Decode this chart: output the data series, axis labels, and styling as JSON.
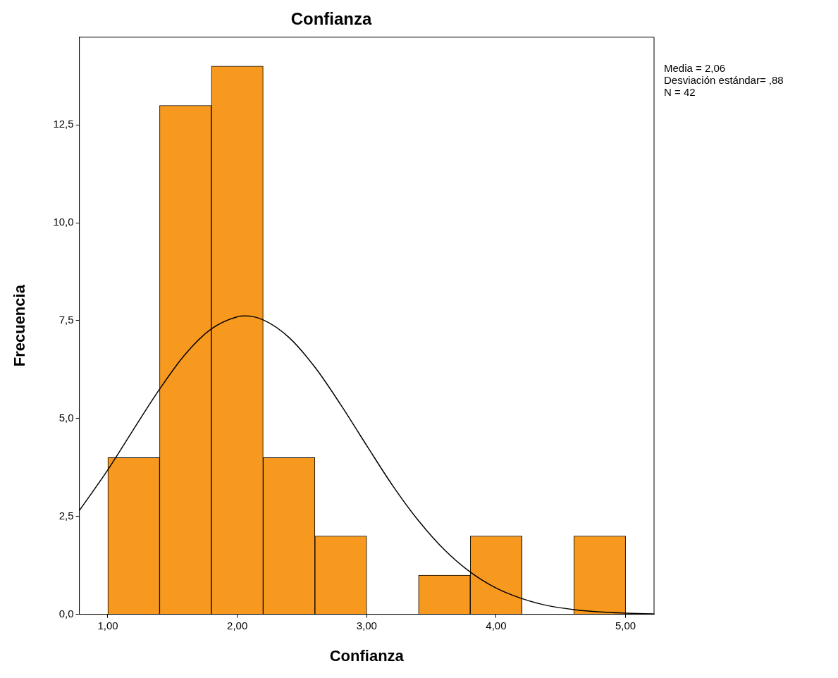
{
  "chart_data": {
    "type": "histogram",
    "title": "Confianza",
    "xlabel": "Confianza",
    "ylabel": "Frecuencia",
    "bins": [
      1.0,
      1.4,
      1.8,
      2.2,
      2.6,
      3.0,
      3.4,
      3.8,
      4.2,
      4.6,
      5.0
    ],
    "values": [
      4,
      13,
      14,
      4,
      2,
      0,
      1,
      2,
      0,
      2
    ],
    "color": "#f7991e",
    "series": [
      {
        "type": "line",
        "color": "#000000",
        "x": [
          0.78,
          1.0,
          1.2,
          1.4,
          1.6,
          1.8,
          2.0,
          2.06,
          2.2,
          2.4,
          2.6,
          2.8,
          3.0,
          3.2,
          3.4,
          3.6,
          3.8,
          4.0,
          4.2,
          4.4,
          4.6,
          4.8,
          5.0,
          5.22
        ],
        "values": [
          2.65,
          3.69,
          4.73,
          5.75,
          6.65,
          7.29,
          7.6,
          7.62,
          7.52,
          7.07,
          6.31,
          5.35,
          4.31,
          3.29,
          2.39,
          1.65,
          1.08,
          0.67,
          0.4,
          0.22,
          0.12,
          0.06,
          0.03,
          0.01
        ]
      }
    ],
    "xlim": [
      0.78,
      5.22
    ],
    "xticks": [
      {
        "value": 1,
        "label": "1,00"
      },
      {
        "value": 2,
        "label": "2,00"
      },
      {
        "value": 3,
        "label": "3,00"
      },
      {
        "value": 4,
        "label": "4,00"
      },
      {
        "value": 5,
        "label": "5,00"
      }
    ],
    "ylim": [
      0,
      14.74
    ],
    "yticks": [
      {
        "value": 0,
        "label": "0,0"
      },
      {
        "value": 2.5,
        "label": "2,5"
      },
      {
        "value": 5,
        "label": "5,0"
      },
      {
        "value": 7.5,
        "label": "7,5"
      },
      {
        "value": 10,
        "label": "10,0"
      },
      {
        "value": 12.5,
        "label": "12,5"
      }
    ],
    "grid": false,
    "legend": false,
    "marker": "none",
    "annotations": [
      "Media = 2,06",
      "Desviación estándar= ,88",
      "N = 42"
    ]
  }
}
